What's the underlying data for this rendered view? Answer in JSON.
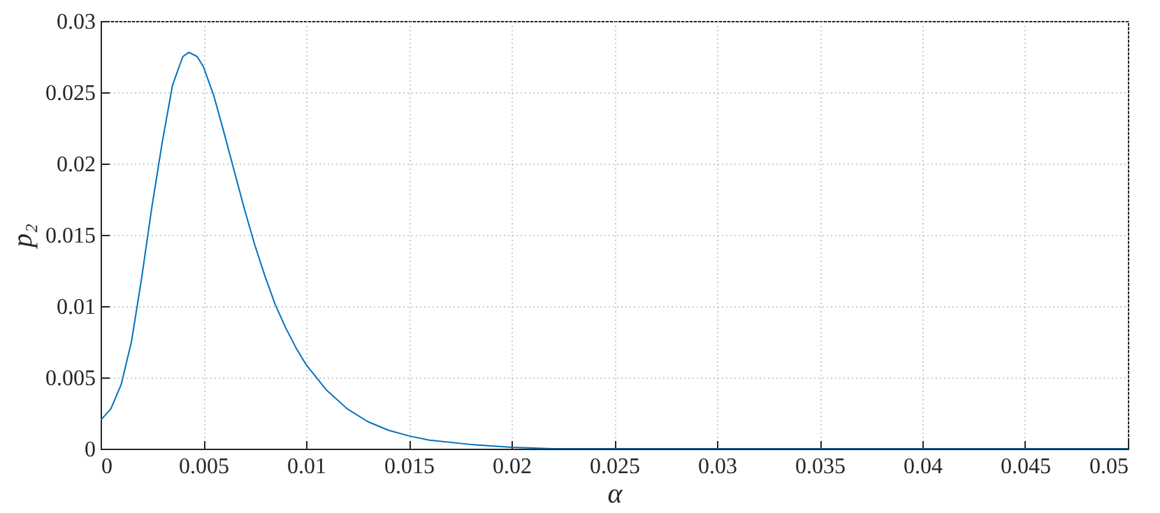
{
  "chart_data": {
    "type": "line",
    "xlabel": "α",
    "ylabel": "p₂",
    "x": [
      0,
      0.0005,
      0.001,
      0.0015,
      0.002,
      0.0025,
      0.003,
      0.0035,
      0.004,
      0.0043,
      0.0047,
      0.005,
      0.0055,
      0.006,
      0.0065,
      0.007,
      0.0075,
      0.008,
      0.0085,
      0.009,
      0.0095,
      0.01,
      0.011,
      0.012,
      0.013,
      0.014,
      0.015,
      0.016,
      0.018,
      0.02,
      0.022,
      0.025,
      0.03,
      0.04,
      0.05
    ],
    "series": [
      {
        "color": "#0072bd",
        "values": [
          0.002,
          0.0028,
          0.0045,
          0.0075,
          0.012,
          0.017,
          0.0215,
          0.0255,
          0.0275,
          0.0278,
          0.0275,
          0.0268,
          0.0248,
          0.0222,
          0.0195,
          0.0168,
          0.0143,
          0.0121,
          0.0101,
          0.0085,
          0.0071,
          0.0059,
          0.0041,
          0.0028,
          0.0019,
          0.0013,
          0.0009,
          0.0006,
          0.0003,
          0.0001,
          0,
          0,
          0,
          0,
          0
        ]
      }
    ],
    "xlim": [
      0,
      0.05
    ],
    "xticks": [
      0,
      0.005,
      0.01,
      0.015,
      0.02,
      0.025,
      0.03,
      0.035,
      0.04,
      0.045,
      0.05
    ],
    "ylim": [
      0,
      0.03
    ],
    "yticks": [
      0,
      0.005,
      0.01,
      0.015,
      0.02,
      0.025,
      0.03
    ],
    "grid": true,
    "marker": "none",
    "line_style": "solid",
    "legend": false
  }
}
